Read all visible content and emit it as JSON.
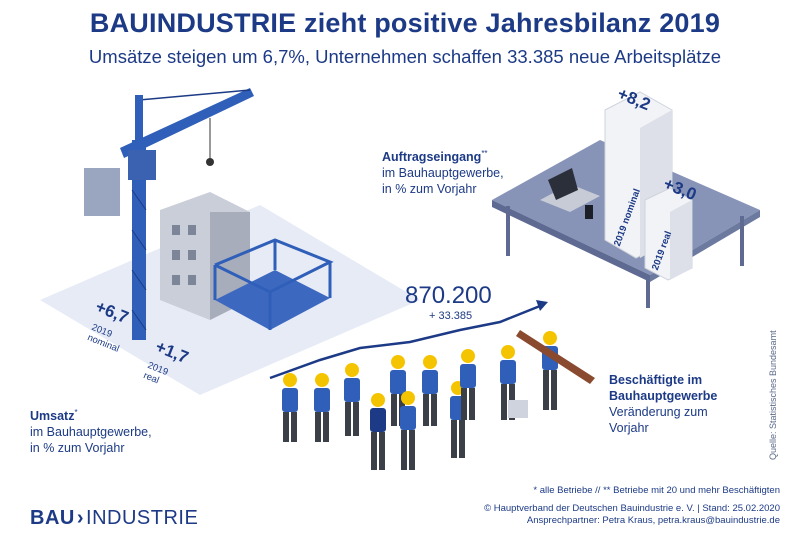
{
  "title": "BAUINDUSTRIE zieht positive Jahresbilanz 2019",
  "subtitle": "Umsätze steigen um 6,7%, Unternehmen schaffen 33.385 neue Arbeitsplätze",
  "umsatz": {
    "heading": "Umsatz",
    "heading_mark": "*",
    "line1": "im Bauhauptgewerbe,",
    "line2": "in % zum Vorjahr",
    "nominal_value": "+6,7",
    "nominal_label1": "2019",
    "nominal_label2": "nominal",
    "real_value": "+1,7",
    "real_label1": "2019",
    "real_label2": "real"
  },
  "auftrag": {
    "heading": "Auftragseingang",
    "heading_mark": "**",
    "line1": "im Bauhauptgewerbe,",
    "line2": "in % zum Vorjahr",
    "nominal_value": "+8,2",
    "nominal_label": "2019 nominal",
    "real_value": "+3,0",
    "real_label": "2019 real"
  },
  "beschaeftigte": {
    "total": "870.200",
    "delta": "+ 33.385",
    "heading1": "Beschäftigte im",
    "heading2": "Bauhauptgewerbe",
    "line1": "Veränderung zum",
    "line2": "Vorjahr"
  },
  "footnote": "* alle Betriebe //  ** Betriebe mit 20 und mehr Beschäftigten",
  "copyright": "© Hauptverband der Deutschen Bauindustrie e. V. | Stand: 25.02.2020",
  "contact": "Ansprechpartner: Petra Kraus, petra.kraus@bauindustrie.de",
  "logo_left": "BAU",
  "logo_right": "INDUSTRIE",
  "source": "Quelle: Statistisches Bundesamt",
  "colors": {
    "navy": "#1c3a85",
    "blue": "#2f5fb8",
    "ground": "#e6ebf6",
    "table": "#8794b8"
  }
}
